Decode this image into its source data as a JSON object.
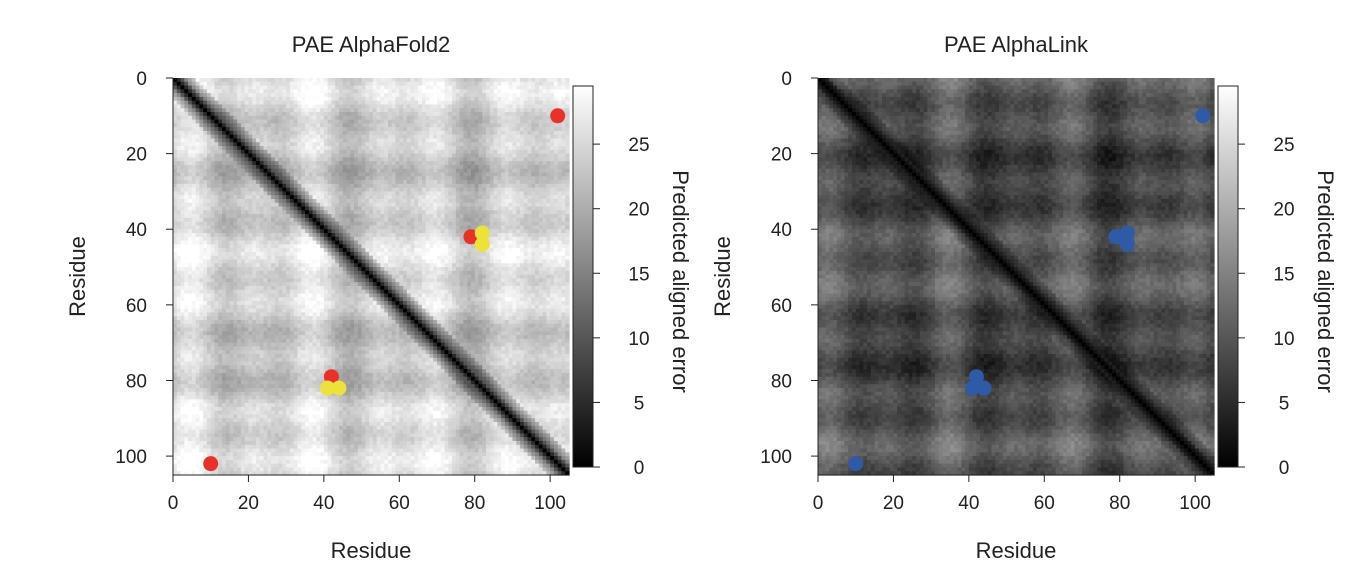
{
  "chart_data": [
    {
      "type": "heatmap",
      "title": "PAE AlphaFold2",
      "xlabel": "Residue",
      "ylabel": "Residue",
      "xlim": [
        0,
        105
      ],
      "ylim": [
        0,
        105
      ],
      "y_inverted": true,
      "x_ticks": [
        0,
        20,
        40,
        60,
        80,
        100
      ],
      "y_ticks": [
        0,
        20,
        40,
        60,
        80,
        100
      ],
      "colorbar": {
        "label": "Predicted aligned error",
        "range": [
          0,
          29.5
        ],
        "ticks": [
          0,
          5,
          10,
          15,
          20,
          25
        ],
        "colormap": "grayscale (black = low, white = high)"
      },
      "heatmap_base_error": 24,
      "diagonal_error": 0,
      "points": [
        {
          "x": 102,
          "y": 10,
          "color": "#e8312b"
        },
        {
          "x": 79,
          "y": 42,
          "color": "#e8312b"
        },
        {
          "x": 82,
          "y": 41,
          "color": "#ece23a"
        },
        {
          "x": 82,
          "y": 44,
          "color": "#ece23a"
        },
        {
          "x": 42,
          "y": 79,
          "color": "#e8312b"
        },
        {
          "x": 41,
          "y": 82,
          "color": "#ece23a"
        },
        {
          "x": 44,
          "y": 82,
          "color": "#ece23a"
        },
        {
          "x": 10,
          "y": 102,
          "color": "#e8312b"
        }
      ]
    },
    {
      "type": "heatmap",
      "title": "PAE AlphaLink",
      "xlabel": "Residue",
      "ylabel": "Residue",
      "xlim": [
        0,
        105
      ],
      "ylim": [
        0,
        105
      ],
      "y_inverted": true,
      "x_ticks": [
        0,
        20,
        40,
        60,
        80,
        100
      ],
      "y_ticks": [
        0,
        20,
        40,
        60,
        80,
        100
      ],
      "colorbar": {
        "label": "Predicted aligned error",
        "range": [
          0,
          29.5
        ],
        "ticks": [
          0,
          5,
          10,
          15,
          20,
          25
        ],
        "colormap": "grayscale (black = low, white = high)"
      },
      "heatmap_base_error": 9,
      "diagonal_error": 0,
      "points": [
        {
          "x": 102,
          "y": 10,
          "color": "#2f5aa8"
        },
        {
          "x": 79,
          "y": 42,
          "color": "#2f5aa8"
        },
        {
          "x": 82,
          "y": 41,
          "color": "#2f5aa8"
        },
        {
          "x": 82,
          "y": 44,
          "color": "#2f5aa8"
        },
        {
          "x": 42,
          "y": 79,
          "color": "#2f5aa8"
        },
        {
          "x": 41,
          "y": 82,
          "color": "#2f5aa8"
        },
        {
          "x": 44,
          "y": 82,
          "color": "#2f5aa8"
        },
        {
          "x": 10,
          "y": 102,
          "color": "#2f5aa8"
        }
      ]
    }
  ]
}
